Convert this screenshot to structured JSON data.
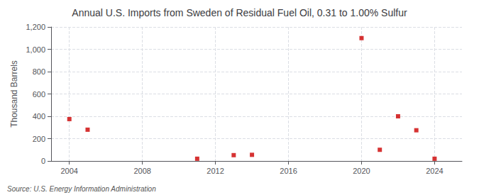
{
  "chart_data": {
    "type": "scatter",
    "title": "Annual U.S. Imports from Sweden of Residual Fuel Oil, 0.31 to 1.00% Sulfur",
    "ylabel": "Thousand Barrels",
    "annotations": [
      "Source: U.S. Energy Information Administration"
    ],
    "x": [
      2004,
      2005,
      2011,
      2013,
      2014,
      2020,
      2021,
      2022,
      2023,
      2024
    ],
    "values": [
      375,
      280,
      20,
      52,
      55,
      1100,
      100,
      400,
      275,
      20
    ],
    "color": "#cc0000",
    "marker": "square",
    "xlim": [
      2003.0,
      2025.5
    ],
    "ylim": [
      0,
      1200
    ],
    "xticks": [
      2004,
      2008,
      2012,
      2016,
      2020,
      2024
    ],
    "yticks": [
      0,
      200,
      400,
      600,
      {
        "value": 800,
        "label": "800"
      },
      {
        "value": 1000,
        "label": "1,000"
      },
      {
        "value": 1200,
        "label": "1,200"
      }
    ],
    "grid": true
  }
}
